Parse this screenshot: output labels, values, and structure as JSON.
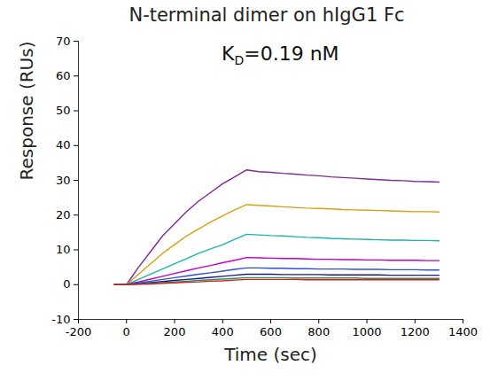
{
  "chart_data": {
    "type": "line",
    "title": "N-terminal dimer on hIgG1 Fc",
    "annotation": {
      "base": "K",
      "subscript": "D",
      "text": "=0.19 nM"
    },
    "x_label": "Time (sec)",
    "y_label": "Response (RUs)",
    "xlim": [
      -200,
      1400
    ],
    "xticks": [
      -200,
      0,
      200,
      400,
      600,
      800,
      1000,
      1200,
      1400
    ],
    "ylim": [
      -10,
      70
    ],
    "yticks": [
      -10,
      0,
      10,
      20,
      30,
      40,
      50,
      60,
      70
    ],
    "grid": false,
    "x": [
      -50,
      0,
      50,
      100,
      150,
      200,
      250,
      300,
      350,
      400,
      450,
      500,
      550,
      600,
      650,
      700,
      750,
      800,
      850,
      900,
      950,
      1000,
      1050,
      1100,
      1150,
      1200,
      1250,
      1300
    ],
    "series": [
      {
        "color": "#7b2d8e",
        "values": [
          0,
          0,
          5,
          9.5,
          14,
          17.5,
          21,
          24,
          26.5,
          29,
          31,
          33,
          32.5,
          32.3,
          32,
          31.8,
          31.5,
          31.3,
          31,
          30.8,
          30.6,
          30.4,
          30.2,
          30,
          29.9,
          29.7,
          29.6,
          29.5
        ]
      },
      {
        "color": "#d4a017",
        "values": [
          0,
          0,
          3,
          6,
          9,
          11.5,
          14,
          16,
          18,
          19.8,
          21.5,
          23,
          22.8,
          22.6,
          22.4,
          22.2,
          22,
          21.9,
          21.8,
          21.6,
          21.5,
          21.4,
          21.3,
          21.2,
          21.1,
          21,
          21,
          20.9
        ]
      },
      {
        "color": "#20b2aa",
        "values": [
          0,
          0,
          1.5,
          3,
          4.5,
          6,
          7.5,
          9,
          10.3,
          11.5,
          13,
          14.5,
          14.3,
          14.1,
          14,
          13.8,
          13.6,
          13.5,
          13.3,
          13.2,
          13.1,
          13,
          12.9,
          12.8,
          12.8,
          12.7,
          12.7,
          12.6
        ]
      },
      {
        "color": "#c000c0",
        "values": [
          0,
          0,
          0.8,
          1.6,
          2.4,
          3.2,
          4,
          4.8,
          5.5,
          6.3,
          7,
          7.8,
          7.7,
          7.6,
          7.5,
          7.5,
          7.4,
          7.3,
          7.3,
          7.2,
          7.2,
          7.1,
          7.1,
          7,
          7,
          7,
          6.9,
          6.9
        ]
      },
      {
        "color": "#3050d0",
        "values": [
          0,
          0,
          0.5,
          1,
          1.5,
          2,
          2.5,
          3,
          3.4,
          3.9,
          4.4,
          4.8,
          4.8,
          4.7,
          4.7,
          4.6,
          4.6,
          4.5,
          4.5,
          4.5,
          4.4,
          4.4,
          4.4,
          4.3,
          4.3,
          4.3,
          4.2,
          4.2
        ]
      },
      {
        "color": "#1a1a80",
        "values": [
          0,
          0,
          0.3,
          0.6,
          0.9,
          1.2,
          1.5,
          1.8,
          2.1,
          2.4,
          2.7,
          3,
          3,
          3,
          2.9,
          2.9,
          2.9,
          2.9,
          2.8,
          2.8,
          2.8,
          2.8,
          2.8,
          2.7,
          2.7,
          2.7,
          2.7,
          2.7
        ]
      },
      {
        "color": "#2e8b57",
        "values": [
          0,
          0,
          0.2,
          0.4,
          0.6,
          0.8,
          1,
          1.2,
          1.4,
          1.6,
          1.8,
          2,
          2,
          2,
          2,
          1.9,
          1.9,
          1.9,
          1.9,
          1.9,
          1.9,
          1.8,
          1.8,
          1.8,
          1.8,
          1.8,
          1.8,
          1.8
        ]
      },
      {
        "color": "#d02020",
        "values": [
          0,
          0,
          0.1,
          0.2,
          0.4,
          0.5,
          0.7,
          0.8,
          1,
          1.1,
          1.3,
          1.5,
          1.5,
          1.5,
          1.5,
          1.5,
          1.4,
          1.4,
          1.4,
          1.4,
          1.4,
          1.4,
          1.4,
          1.4,
          1.4,
          1.4,
          1.4,
          1.4
        ]
      }
    ]
  }
}
